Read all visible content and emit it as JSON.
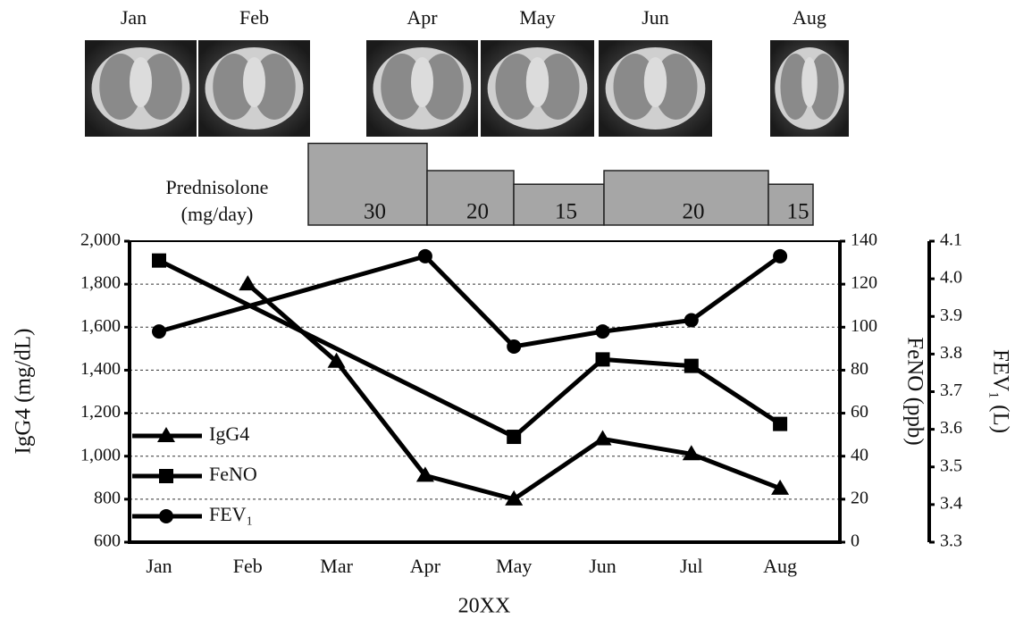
{
  "chart_data": {
    "type": "line",
    "x_label": "20XX",
    "y_label": "IgG4 (mg/dL)",
    "y2_label": "FeNO (ppb)",
    "y3_label": "FEV₁ (L)",
    "categories": [
      "Jan",
      "Feb",
      "Mar",
      "Apr",
      "May",
      "Jun",
      "Jul",
      "Aug"
    ],
    "ylim": [
      600,
      2000
    ],
    "yticks": [
      600,
      800,
      {
        "value": 1000,
        "label": "1,000"
      },
      {
        "value": 1200,
        "label": "1,200"
      },
      {
        "value": 1400,
        "label": "1,400"
      },
      {
        "value": 1600,
        "label": "1,600"
      },
      {
        "value": 1800,
        "label": "1,800"
      },
      {
        "value": 2000,
        "label": "2,000"
      }
    ],
    "y2lim": [
      0,
      140
    ],
    "y2ticks": [
      0,
      20,
      40,
      60,
      80,
      100,
      120,
      140
    ],
    "y3lim": [
      3.3,
      4.1
    ],
    "y3ticks": [
      3.3,
      3.4,
      3.5,
      3.6,
      3.7,
      3.8,
      3.9,
      {
        "value": 4,
        "label": "4.0"
      },
      4.1
    ],
    "grid": true,
    "legend": "lower left",
    "series": [
      {
        "name": "IgG4",
        "color": "#000000",
        "marker": "triangle",
        "axis": "y",
        "x": [
          "Feb",
          "Mar",
          "Apr",
          "May",
          "Jun",
          "Jul",
          "Aug"
        ],
        "values": [
          1800,
          1440,
          910,
          800,
          1080,
          1010,
          850
        ]
      },
      {
        "name": "FeNO",
        "color": "#000000",
        "marker": "square",
        "axis": "y2",
        "x": [
          "Jan",
          "May",
          "Jun",
          "Jul",
          "Aug"
        ],
        "values": [
          131,
          49,
          85,
          82,
          55
        ]
      },
      {
        "name": "FEV₁",
        "color": "#000000",
        "marker": "circle",
        "axis": "y3",
        "x": [
          "Jan",
          "Apr",
          "May",
          "Jun",
          "Jul",
          "Aug"
        ],
        "values": [
          3.86,
          4.06,
          3.82,
          3.86,
          3.89,
          4.06
        ]
      }
    ],
    "prednisolone": {
      "label": [
        "Prednisolone",
        "(mg/day)"
      ],
      "doses": [
        30,
        20,
        15,
        20,
        15
      ]
    },
    "ct_images": [
      "Jan",
      "Feb",
      "Apr",
      "May",
      "Jun",
      "Aug"
    ]
  }
}
